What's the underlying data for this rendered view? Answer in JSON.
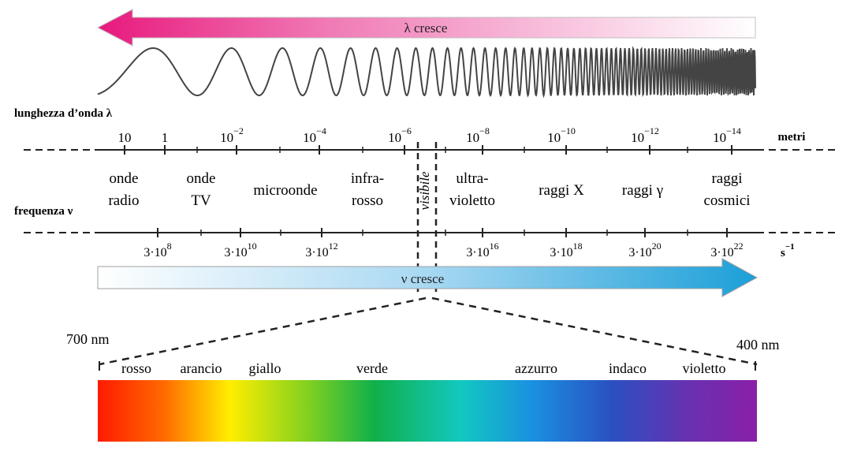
{
  "top_arrow": {
    "label": "λ cresce",
    "color_start": "#e8197d",
    "color_end": "#ffffff"
  },
  "bottom_arrow": {
    "label": "ν cresce",
    "color_start": "#ffffff",
    "color_end": "#1b9fd8"
  },
  "wavelength_axis": {
    "label": "lunghezza d’onda λ",
    "unit": "metri",
    "ticks": [
      {
        "base": "10",
        "exp": ""
      },
      {
        "base": "1",
        "exp": ""
      },
      {
        "base": "10",
        "exp": "−2"
      },
      {
        "base": "10",
        "exp": "−4"
      },
      {
        "base": "10",
        "exp": "−6"
      },
      {
        "base": "10",
        "exp": "−8"
      },
      {
        "base": "10",
        "exp": "−10"
      },
      {
        "base": "10",
        "exp": "−12"
      },
      {
        "base": "10",
        "exp": "−14"
      }
    ]
  },
  "frequency_axis": {
    "label": "frequenza ν",
    "unit_base": "s",
    "unit_exp": "−1",
    "ticks": [
      {
        "base": "3·10",
        "exp": "8"
      },
      {
        "base": "3·10",
        "exp": "10"
      },
      {
        "base": "3·10",
        "exp": "12"
      },
      {
        "base": "3·10",
        "exp": "16"
      },
      {
        "base": "3·10",
        "exp": "18"
      },
      {
        "base": "3·10",
        "exp": "20"
      },
      {
        "base": "3·10",
        "exp": "22"
      }
    ]
  },
  "regions": [
    {
      "line1": "onde",
      "line2": "radio"
    },
    {
      "line1": "onde",
      "line2": "TV"
    },
    {
      "line1": "microonde",
      "line2": ""
    },
    {
      "line1": "infra-",
      "line2": "rosso"
    },
    {
      "line1": "visibile",
      "line2": ""
    },
    {
      "line1": "ultra-",
      "line2": "violetto"
    },
    {
      "line1": "raggi X",
      "line2": ""
    },
    {
      "line1": "raggi γ",
      "line2": ""
    },
    {
      "line1": "raggi",
      "line2": "cosmici"
    }
  ],
  "visible_spectrum": {
    "left_label": "700 nm",
    "right_label": "400 nm",
    "colors": [
      "rosso",
      "arancio",
      "giallo",
      "verde",
      "azzurro",
      "indaco",
      "violetto"
    ]
  }
}
